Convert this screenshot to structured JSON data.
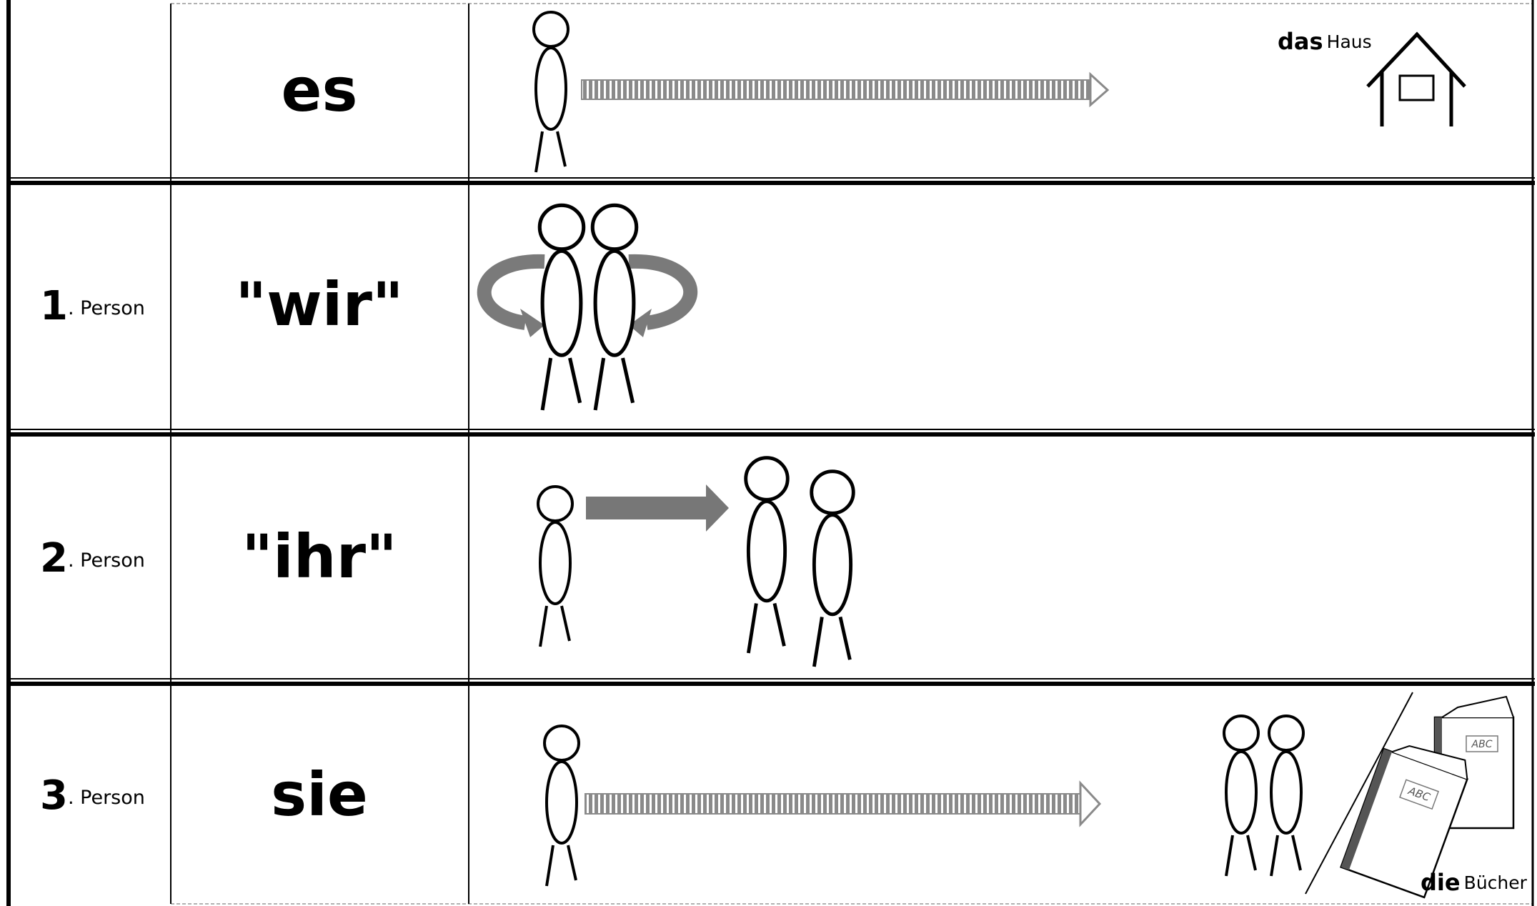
{
  "rows": [
    {
      "pronoun": "es",
      "label": {
        "article": "das",
        "noun": "Haus"
      }
    },
    {
      "number": "1",
      "person": ". Person",
      "pronoun": "\"wir\""
    },
    {
      "number": "2",
      "person": ". Person",
      "pronoun": "\"ihr\""
    },
    {
      "number": "3",
      "person": ". Person",
      "pronoun": "sie",
      "label": {
        "article": "die",
        "noun": "Bücher"
      },
      "book_label": "ABC"
    }
  ]
}
